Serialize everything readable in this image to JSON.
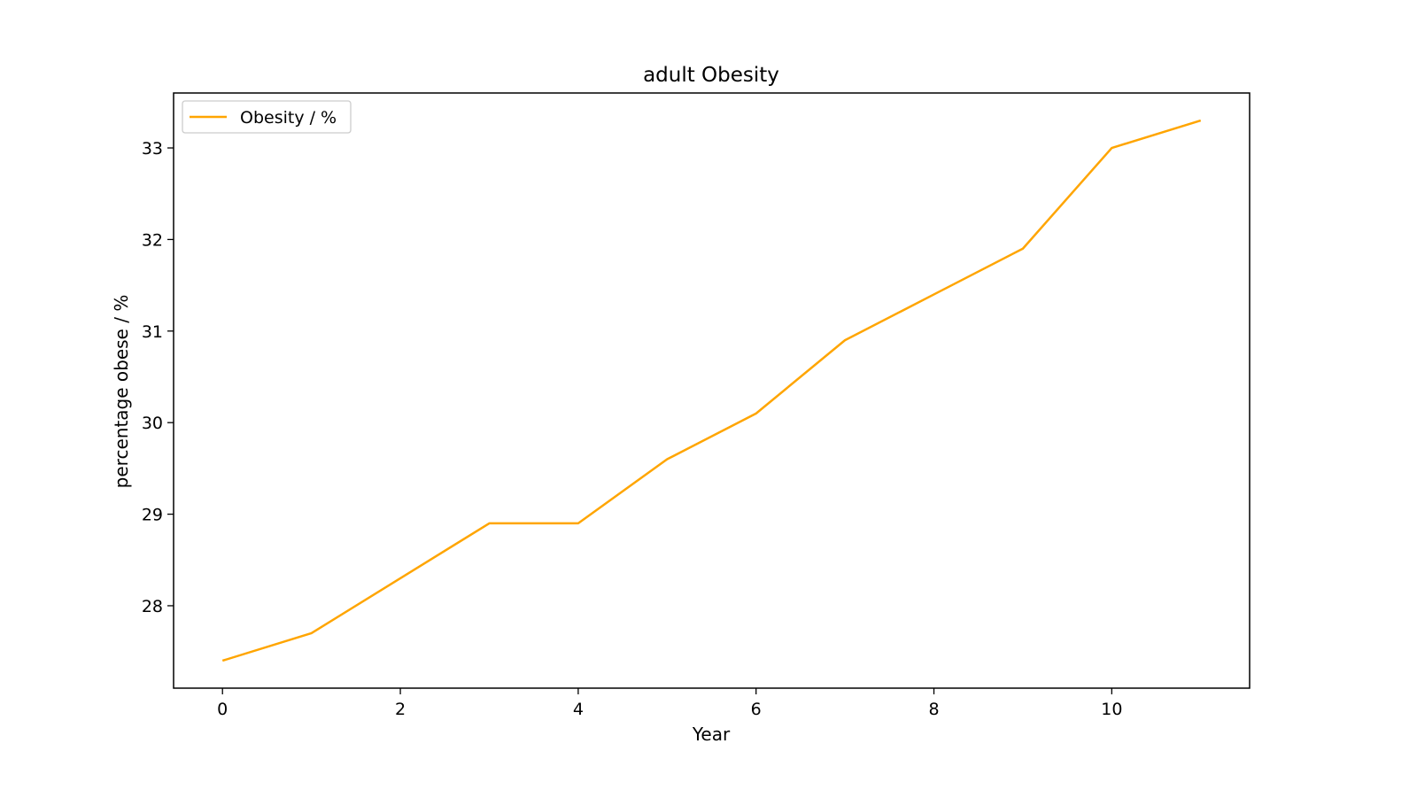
{
  "chart_data": {
    "type": "line",
    "title": "adult Obesity",
    "xlabel": "Year",
    "ylabel": "percentage obese / %",
    "xlim": [
      -0.55,
      11.55
    ],
    "ylim": [
      27.1,
      33.6
    ],
    "xticks": [
      0,
      2,
      4,
      6,
      8,
      10
    ],
    "yticks": [
      28,
      29,
      30,
      31,
      32,
      33
    ],
    "grid": false,
    "legend_position": "top-left",
    "series": [
      {
        "name": "Obesity / %",
        "color": "#ffa500",
        "x": [
          0,
          1,
          2,
          3,
          4,
          5,
          6,
          7,
          8,
          9,
          10,
          11
        ],
        "y": [
          27.4,
          27.7,
          28.3,
          28.9,
          28.9,
          29.6,
          30.1,
          30.9,
          31.4,
          31.9,
          33.0,
          33.3
        ]
      }
    ]
  }
}
